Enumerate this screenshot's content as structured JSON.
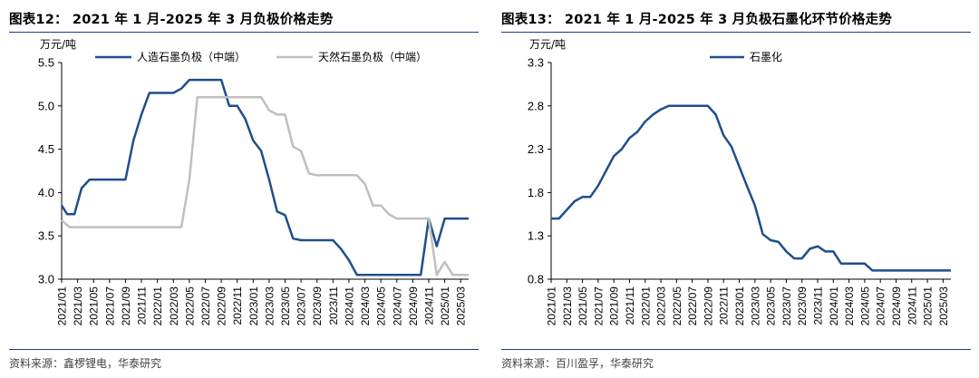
{
  "charts": [
    {
      "figure_title": "图表12：  2021 年 1 月-2025 年 3 月负极价格走势",
      "source": "资料来源：鑫椤锂电，华泰研究",
      "chart_data": {
        "type": "line",
        "unit": "万元/吨",
        "ylim": [
          3.0,
          5.5
        ],
        "yticks": [
          "3.0",
          "3.5",
          "4.0",
          "4.5",
          "5.0",
          "5.5"
        ],
        "xticks": [
          "2021/01",
          "2021/03",
          "2021/05",
          "2021/07",
          "2021/09",
          "2021/11",
          "2022/01",
          "2022/03",
          "2022/05",
          "2022/07",
          "2022/09",
          "2022/11",
          "2023/01",
          "2023/03",
          "2023/05",
          "2023/07",
          "2023/09",
          "2023/11",
          "2024/01",
          "2024/03",
          "2024/05",
          "2024/07",
          "2024/09",
          "2024/11",
          "2025/01",
          "2025/03"
        ],
        "legend_position": "top",
        "series": [
          {
            "name": "人造石墨负极（中端）",
            "color": "#1f4e8c",
            "points": [
              [
                0,
                3.85
              ],
              [
                0.7,
                3.75
              ],
              [
                1.6,
                3.75
              ],
              [
                2.5,
                4.05
              ],
              [
                3.5,
                4.15
              ],
              [
                5,
                4.15
              ],
              [
                6,
                4.15
              ],
              [
                7,
                4.15
              ],
              [
                8,
                4.15
              ],
              [
                9,
                4.6
              ],
              [
                10,
                4.9
              ],
              [
                11,
                5.15
              ],
              [
                12,
                5.15
              ],
              [
                13,
                5.15
              ],
              [
                14,
                5.15
              ],
              [
                15,
                5.2
              ],
              [
                16,
                5.3
              ],
              [
                17,
                5.3
              ],
              [
                18,
                5.3
              ],
              [
                19,
                5.3
              ],
              [
                20,
                5.3
              ],
              [
                21,
                5.0
              ],
              [
                22,
                5.0
              ],
              [
                23,
                4.85
              ],
              [
                24,
                4.6
              ],
              [
                25,
                4.48
              ],
              [
                26,
                4.15
              ],
              [
                27,
                3.78
              ],
              [
                28,
                3.74
              ],
              [
                29,
                3.47
              ],
              [
                30,
                3.45
              ],
              [
                31,
                3.45
              ],
              [
                32,
                3.45
              ],
              [
                33,
                3.45
              ],
              [
                34,
                3.45
              ],
              [
                35,
                3.35
              ],
              [
                36,
                3.22
              ],
              [
                37,
                3.05
              ],
              [
                38,
                3.05
              ],
              [
                39,
                3.05
              ],
              [
                40,
                3.05
              ],
              [
                41,
                3.05
              ],
              [
                42,
                3.05
              ],
              [
                43,
                3.05
              ],
              [
                44,
                3.05
              ],
              [
                45,
                3.05
              ],
              [
                46,
                3.7
              ],
              [
                47,
                3.38
              ],
              [
                48,
                3.7
              ],
              [
                49,
                3.7
              ],
              [
                50,
                3.7
              ],
              [
                51,
                3.7
              ]
            ]
          },
          {
            "name": "天然石墨负极（中端）",
            "color": "#bfbfbf",
            "points": [
              [
                0,
                3.68
              ],
              [
                1,
                3.6
              ],
              [
                5,
                3.6
              ],
              [
                10,
                3.6
              ],
              [
                14,
                3.6
              ],
              [
                15,
                3.6
              ],
              [
                16,
                4.15
              ],
              [
                17,
                5.1
              ],
              [
                18,
                5.1
              ],
              [
                22,
                5.1
              ],
              [
                24,
                5.1
              ],
              [
                25,
                5.1
              ],
              [
                26,
                4.95
              ],
              [
                27,
                4.9
              ],
              [
                28,
                4.9
              ],
              [
                29,
                4.53
              ],
              [
                30,
                4.48
              ],
              [
                31,
                4.22
              ],
              [
                32,
                4.2
              ],
              [
                36,
                4.2
              ],
              [
                37,
                4.2
              ],
              [
                38,
                4.1
              ],
              [
                39,
                3.85
              ],
              [
                40,
                3.85
              ],
              [
                41,
                3.75
              ],
              [
                42,
                3.7
              ],
              [
                45,
                3.7
              ],
              [
                46,
                3.7
              ],
              [
                47,
                3.05
              ],
              [
                48,
                3.2
              ],
              [
                49,
                3.05
              ],
              [
                50,
                3.05
              ],
              [
                51,
                3.05
              ]
            ]
          }
        ]
      }
    },
    {
      "figure_title": "图表13：  2021 年 1 月-2025 年 3 月负极石墨化环节价格走势",
      "source": "资料来源：百川盈孚，华泰研究",
      "chart_data": {
        "type": "line",
        "unit": "万元/吨",
        "ylim": [
          0.8,
          3.3
        ],
        "yticks": [
          "0.8",
          "1.3",
          "1.8",
          "2.3",
          "2.8",
          "3.3"
        ],
        "xticks": [
          "2021/01",
          "2021/03",
          "2021/05",
          "2021/07",
          "2021/09",
          "2021/11",
          "2022/01",
          "2022/03",
          "2022/05",
          "2022/07",
          "2022/09",
          "2022/11",
          "2023/01",
          "2023/03",
          "2023/05",
          "2023/07",
          "2023/09",
          "2023/11",
          "2024/01",
          "2024/03",
          "2024/05",
          "2024/07",
          "2024/09",
          "2024/11",
          "2025/01",
          "2025/03"
        ],
        "legend_position": "top",
        "series": [
          {
            "name": "石墨化",
            "color": "#1f4e8c",
            "points": [
              [
                0,
                1.5
              ],
              [
                1,
                1.5
              ],
              [
                2,
                1.6
              ],
              [
                3,
                1.7
              ],
              [
                4,
                1.75
              ],
              [
                5,
                1.75
              ],
              [
                6,
                1.88
              ],
              [
                7,
                2.05
              ],
              [
                8,
                2.22
              ],
              [
                9,
                2.3
              ],
              [
                10,
                2.43
              ],
              [
                11,
                2.5
              ],
              [
                12,
                2.62
              ],
              [
                13,
                2.7
              ],
              [
                14,
                2.76
              ],
              [
                15,
                2.8
              ],
              [
                16,
                2.8
              ],
              [
                17,
                2.8
              ],
              [
                18,
                2.8
              ],
              [
                19,
                2.8
              ],
              [
                20,
                2.8
              ],
              [
                21,
                2.7
              ],
              [
                22,
                2.46
              ],
              [
                23,
                2.33
              ],
              [
                24,
                2.1
              ],
              [
                25,
                1.87
              ],
              [
                26,
                1.65
              ],
              [
                27,
                1.32
              ],
              [
                28,
                1.25
              ],
              [
                29,
                1.23
              ],
              [
                30,
                1.12
              ],
              [
                31,
                1.04
              ],
              [
                32,
                1.04
              ],
              [
                33,
                1.15
              ],
              [
                34,
                1.18
              ],
              [
                35,
                1.12
              ],
              [
                36,
                1.12
              ],
              [
                37,
                0.98
              ],
              [
                38,
                0.98
              ],
              [
                39,
                0.98
              ],
              [
                40,
                0.98
              ],
              [
                41,
                0.9
              ],
              [
                43,
                0.9
              ],
              [
                45,
                0.9
              ],
              [
                47,
                0.9
              ],
              [
                49,
                0.9
              ],
              [
                51,
                0.9
              ]
            ]
          }
        ]
      }
    }
  ]
}
